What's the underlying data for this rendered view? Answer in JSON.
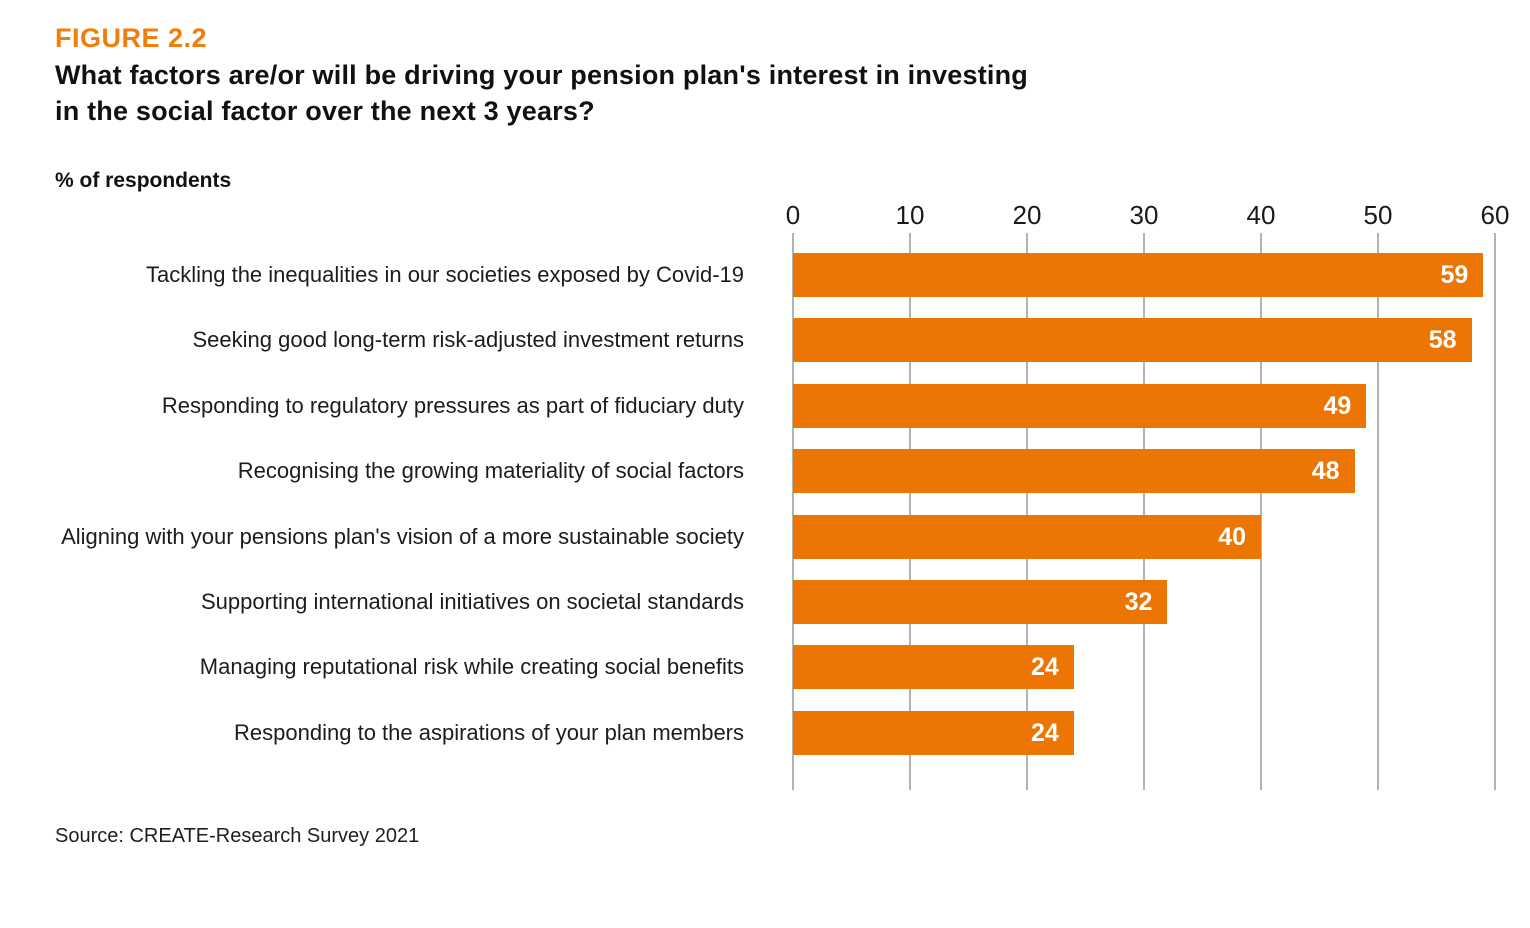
{
  "figure": {
    "label": "FIGURE 2.2",
    "title_lines": [
      "What factors are/or will be driving your pension plan's interest in investing",
      "in the social factor over the next 3 years?"
    ]
  },
  "source": "Source: CREATE-Research Survey 2021",
  "colors": {
    "accent_orange": "#EC7503",
    "figure_label_orange": "#F07E0C",
    "gridline": "#ADB5B9",
    "title_text": "#111111",
    "body_text": "#1c1c1c",
    "value_label": "#FFFFFF"
  },
  "chart_data": {
    "type": "bar",
    "orientation": "horizontal",
    "title": "What factors are/or will be driving your pension plan's interest in investing in the social factor over the next 3 years?",
    "xlabel": "% of respondents",
    "ylabel": "",
    "xlim": [
      0,
      60
    ],
    "xticks": [
      0,
      10,
      20,
      30,
      40,
      50,
      60
    ],
    "grid": "vertical gridlines only, behind bars",
    "legend_position": "none",
    "bar_color": "#EC7503",
    "value_labels": "white bold, inside right end of each bar",
    "categories": [
      "Tackling the inequalities in our societies exposed by Covid-19",
      "Seeking good long-term risk-adjusted investment returns",
      "Responding to regulatory pressures as part of fiduciary duty",
      "Recognising the growing materiality of social factors",
      "Aligning with your pensions plan's vision of a more sustainable society",
      "Supporting international initiatives on societal standards",
      "Managing reputational risk while creating social benefits",
      "Responding to the aspirations of your plan members"
    ],
    "values": [
      59,
      58,
      49,
      48,
      40,
      32,
      24,
      24
    ]
  }
}
